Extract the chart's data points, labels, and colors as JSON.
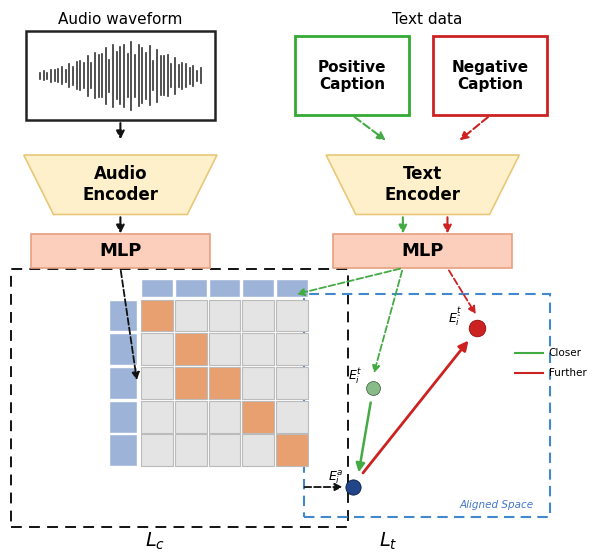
{
  "fig_width": 5.96,
  "fig_height": 5.56,
  "dpi": 100,
  "colors": {
    "encoder_fill": "#FFF0CC",
    "encoder_edge": "#E8C878",
    "mlp_fill": "#FBCFBC",
    "mlp_edge": "#E8A080",
    "waveform_box": "#222222",
    "positive_box": "#33AA33",
    "negative_box": "#CC2222",
    "matrix_blue": "#9DB4D8",
    "matrix_orange": "#E8A070",
    "matrix_gray": "#E4E4E4",
    "aligned_space_box": "#4488CC",
    "arrow_black": "#111111",
    "arrow_green": "#44AA44",
    "arrow_red": "#CC2222",
    "dot_blue": "#224488",
    "dot_green": "#88BB88",
    "dot_red": "#CC2222",
    "text_blue": "#4477CC"
  },
  "labels": {
    "audio_waveform": "Audio waveform",
    "text_data": "Text data",
    "audio_encoder": "Audio\nEncoder",
    "text_encoder": "Text\nEncoder",
    "mlp_left": "MLP",
    "mlp_right": "MLP",
    "positive_caption": "Positive\nCaption",
    "negative_caption": "Negative\nCaption",
    "lc": "$L_c$",
    "lt": "$L_t$",
    "aligned_space": "Aligned Space",
    "closer": "Closer",
    "further": "Further",
    "Eit": "$E_i^t$",
    "Eihat": "$E_{\\hat{i}}^t$",
    "Eia": "$E_i^a$"
  },
  "orange_cells": [
    [
      0,
      0
    ],
    [
      1,
      1
    ],
    [
      2,
      1
    ],
    [
      2,
      2
    ],
    [
      3,
      3
    ],
    [
      4,
      4
    ]
  ]
}
